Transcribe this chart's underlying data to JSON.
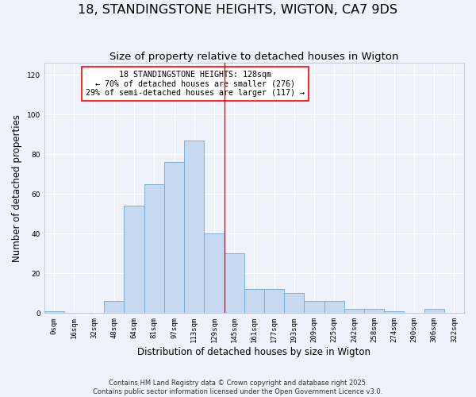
{
  "title": "18, STANDINGSTONE HEIGHTS, WIGTON, CA7 9DS",
  "subtitle": "Size of property relative to detached houses in Wigton",
  "xlabel": "Distribution of detached houses by size in Wigton",
  "ylabel": "Number of detached properties",
  "bar_color": "#c8daf0",
  "bar_edge_color": "#6aaad4",
  "bin_labels": [
    "0sqm",
    "16sqm",
    "32sqm",
    "48sqm",
    "64sqm",
    "81sqm",
    "97sqm",
    "113sqm",
    "129sqm",
    "145sqm",
    "161sqm",
    "177sqm",
    "193sqm",
    "209sqm",
    "225sqm",
    "242sqm",
    "258sqm",
    "274sqm",
    "290sqm",
    "306sqm",
    "322sqm"
  ],
  "bar_heights": [
    1,
    0,
    0,
    6,
    54,
    65,
    76,
    87,
    40,
    30,
    12,
    12,
    10,
    6,
    6,
    2,
    2,
    1,
    0,
    2,
    0
  ],
  "ylim": [
    0,
    126
  ],
  "yticks": [
    0,
    20,
    40,
    60,
    80,
    100,
    120
  ],
  "red_line_x": 8.5,
  "annotation_text": "18 STANDINGSTONE HEIGHTS: 128sqm\n← 70% of detached houses are smaller (276)\n29% of semi-detached houses are larger (117) →",
  "footer": "Contains HM Land Registry data © Crown copyright and database right 2025.\nContains public sector information licensed under the Open Government Licence v3.0.",
  "bg_color": "#eef2fa",
  "grid_color": "#ffffff",
  "title_fontsize": 11.5,
  "subtitle_fontsize": 9.5,
  "tick_fontsize": 6.5,
  "ylabel_fontsize": 8.5,
  "xlabel_fontsize": 8.5,
  "footer_fontsize": 6.0
}
